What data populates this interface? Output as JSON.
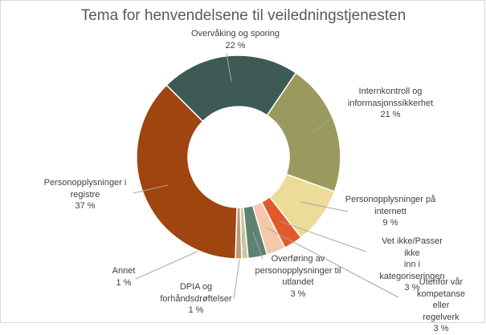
{
  "chart_data": {
    "type": "pie",
    "donut": true,
    "title": "Tema for henvendelsene til veiledningstjenesten",
    "first_slice_angle_deg": 315,
    "direction": "clockwise",
    "legend": "none",
    "slices": [
      {
        "label": "Overvåking og sporing",
        "value": 22,
        "display": "22 %",
        "color": "#3d5a55"
      },
      {
        "label": "Internkontroll og informasjonssikkerhet",
        "value": 21,
        "display": "21 %",
        "color": "#9a9a5e"
      },
      {
        "label": "Personopplysninger på internett",
        "value": 9,
        "display": "9 %",
        "color": "#ecdc98"
      },
      {
        "label": "Vet ikke/Passer ikke inn i kategoriseringen",
        "value": 3,
        "display": "3 %",
        "color": "#e05a2b"
      },
      {
        "label": "Utenfor vår kompetanse eller regelverk",
        "value": 3,
        "display": "3 %",
        "color": "#f5c8ac"
      },
      {
        "label": "Overføring av personopplysninger til utlandet",
        "value": 3,
        "display": "3 %",
        "color": "#5e8272"
      },
      {
        "label": "DPIA og forhåndsdrøftelser",
        "value": 1,
        "display": "1 %",
        "color": "#c8cc9a"
      },
      {
        "label": "Annet",
        "value": 1,
        "display": "1 %",
        "color": "#b89a7e"
      },
      {
        "label": "Personopplysninger i registre",
        "value": 37,
        "display": "37 %",
        "color": "#a0450f"
      }
    ]
  }
}
